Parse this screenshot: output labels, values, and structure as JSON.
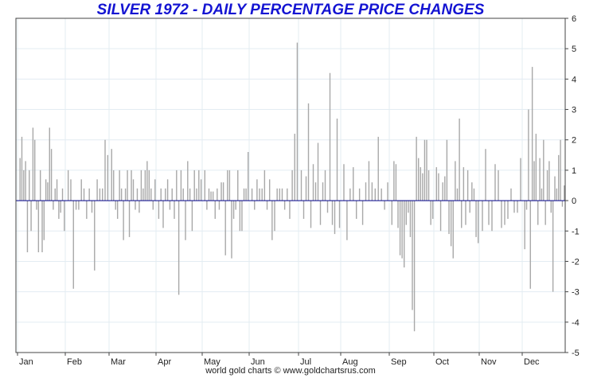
{
  "chart_data": {
    "type": "bar",
    "title": "SILVER 1972 - DAILY PERCENTAGE PRICE CHANGES",
    "credit": "world gold charts © www.goldchartsrus.com",
    "xlabel": "",
    "ylabel": "",
    "ylim": [
      -5,
      6
    ],
    "y_ticks": [
      -5,
      -4,
      -3,
      -2,
      -1,
      0,
      1,
      2,
      3,
      4,
      5,
      6
    ],
    "y_axis_side": "right",
    "grid": true,
    "month_labels": [
      "Jan",
      "Feb",
      "Mar",
      "Apr",
      "May",
      "Jun",
      "Jul",
      "Aug",
      "Sep",
      "Oct",
      "Nov",
      "Dec"
    ],
    "colors": {
      "bars": "#a8a8a8",
      "zero_line": "#00008b",
      "grid": "#e3ecf2",
      "title": "#1414d2"
    },
    "series": [
      {
        "values": [
          [
            1.4,
            2.1,
            1.0,
            1.3,
            -1.7,
            1.0,
            -1.0,
            2.4,
            2.0,
            -0.3,
            -1.7,
            1.0,
            -1.7,
            -1.3,
            0.7,
            0.6,
            2.4,
            1.7,
            -0.3,
            0.4,
            0.7,
            -0.6,
            -0.4,
            0.4,
            -1.0
          ],
          [
            1.0,
            0.7,
            -2.9,
            -0.3,
            -0.3,
            0.7,
            0.4,
            -0.6,
            0.4,
            -0.4,
            -2.3,
            0.7,
            0.4,
            0.4,
            2.0,
            1.5
          ],
          [
            1.7,
            1.0,
            -0.3,
            -0.6,
            1.0,
            0.4,
            -1.3,
            0.4,
            1.0,
            -1.2,
            1.0,
            0.7,
            -0.3,
            0.4,
            -0.4,
            1.0,
            0.4,
            1.0,
            1.3,
            1.0,
            0.4,
            -0.3,
            0.7
          ],
          [
            -0.6,
            0.4,
            -0.9,
            0.4,
            0.7,
            -0.3,
            0.4,
            -0.6,
            1.0,
            -3.1,
            1.0,
            0.4,
            -1.3,
            1.3,
            0.4,
            -1.0,
            1.0,
            0.4,
            1.0,
            0.7
          ],
          [
            1.0,
            -0.3,
            0.4,
            0.3,
            0.3,
            -0.6,
            0.4,
            -0.3,
            0.6,
            0.6,
            -1.8,
            1.0,
            1.0,
            -1.9,
            -0.6,
            -0.3,
            1.0,
            -1.0,
            -1.0,
            0.4,
            0.4,
            1.6
          ],
          [
            0.4,
            -0.3,
            0.7,
            0.4,
            0.4,
            1.0,
            -0.3,
            0.7,
            -1.3,
            -1.0,
            0.4,
            0.4,
            0.4,
            -0.3,
            0.4,
            -0.6,
            1.0,
            2.2,
            5.2
          ],
          [
            1.0,
            -0.6,
            0.8,
            3.2,
            -0.9,
            1.2,
            0.6,
            1.9,
            -0.8,
            0.6,
            1.0,
            -0.4,
            4.2,
            -0.8,
            -1.1,
            2.7,
            -0.9
          ],
          [
            1.2,
            -1.3,
            0.4,
            1.1,
            -0.6,
            0.4,
            -0.8,
            0.6,
            1.3,
            0.6,
            0.4,
            2.1,
            0.4,
            -0.3,
            0.6
          ],
          [
            -0.8,
            1.3,
            1.2,
            -0.9,
            -1.8,
            -1.9,
            -2.2,
            -0.8,
            -0.4,
            -1.2,
            -3.6,
            -4.3,
            2.1,
            1.4,
            1.1,
            0.9,
            2.0,
            2.0,
            1.0,
            -0.8,
            -0.6
          ],
          [
            1.1,
            0.9,
            -1.0,
            0.6,
            0.8,
            2.0,
            -1.1,
            -1.5,
            -1.9,
            1.3,
            0.4,
            2.7,
            -0.9,
            1.1,
            -0.8,
            1.0,
            -0.4,
            0.6,
            0.4,
            -1.2,
            -1.4
          ],
          [
            -1.0,
            1.7,
            -0.8,
            -1.0,
            1.2,
            1.0,
            -0.9,
            -0.8,
            -0.6,
            0.4,
            -0.4,
            -0.4,
            1.4
          ],
          [
            -1.6,
            -0.3,
            3.0,
            -2.9,
            4.4,
            1.3,
            2.2,
            -0.8,
            1.4,
            0.4,
            2.0,
            -0.8,
            1.0,
            1.3,
            -0.4,
            -3.0,
            0.8,
            0.4,
            1.5,
            2.0,
            -0.2,
            0.5
          ]
        ]
      }
    ]
  }
}
